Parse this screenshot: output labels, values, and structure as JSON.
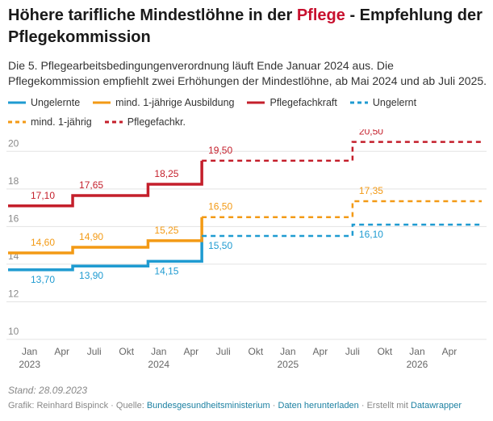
{
  "title": {
    "before": "Höhere tarifliche Mindestlöhne in der",
    "highlight": "Pflege",
    "after": "- Empfehlung der Pflegekommission"
  },
  "subtitle": "Die 5. Pflegearbeitsbedingungenverordnung läuft Ende Januar 2024 aus. Die Pflegekommission empfiehlt zwei Erhöhungen der Mindestlöhne, ab Mai 2024 und ab Juli 2025.",
  "chart_data": {
    "type": "step-line",
    "xlim": [
      "2022-11",
      "2026-07"
    ],
    "xticks": [
      {
        "value": "2023-01",
        "label": "Jan"
      },
      {
        "value": "2023-04",
        "label": "Apr"
      },
      {
        "value": "2023-07",
        "label": "Juli"
      },
      {
        "value": "2023-10",
        "label": "Okt"
      },
      {
        "value": "2024-01",
        "label": "Jan"
      },
      {
        "value": "2024-04",
        "label": "Apr"
      },
      {
        "value": "2024-07",
        "label": "Juli"
      },
      {
        "value": "2024-10",
        "label": "Okt"
      },
      {
        "value": "2025-01",
        "label": "Jan"
      },
      {
        "value": "2025-04",
        "label": "Apr"
      },
      {
        "value": "2025-07",
        "label": "Juli"
      },
      {
        "value": "2025-10",
        "label": "Okt"
      },
      {
        "value": "2026-01",
        "label": "Jan"
      },
      {
        "value": "2026-04",
        "label": "Apr"
      }
    ],
    "xticks_year": [
      {
        "value": "2023-01",
        "label": "2023"
      },
      {
        "value": "2024-01",
        "label": "2024"
      },
      {
        "value": "2025-01",
        "label": "2025"
      },
      {
        "value": "2026-01",
        "label": "2026"
      }
    ],
    "ylim": [
      10,
      21
    ],
    "yticks": [
      10,
      12,
      14,
      16,
      18,
      20
    ],
    "grid": true,
    "series": [
      {
        "name": "Ungelernte",
        "color": "#1f9bd1",
        "dashed": false,
        "label_position": "below",
        "x": [
          "2022-11",
          "2023-05",
          "2023-12",
          "2024-05"
        ],
        "values": [
          13.7,
          13.9,
          14.15,
          15.5
        ],
        "value_labels": [
          "13,70",
          "13,90",
          "14,15",
          "15,50"
        ]
      },
      {
        "name": "mind. 1-jährige Ausbildung",
        "color": "#f39a15",
        "dashed": false,
        "label_position": "above",
        "x": [
          "2022-11",
          "2023-05",
          "2023-12",
          "2024-05"
        ],
        "values": [
          14.6,
          14.9,
          15.25,
          16.5
        ],
        "value_labels": [
          "14,60",
          "14,90",
          "15,25",
          "16,50"
        ]
      },
      {
        "name": "Pflegefachkraft",
        "color": "#c41f2b",
        "dashed": false,
        "label_position": "above",
        "x": [
          "2022-11",
          "2023-05",
          "2023-12",
          "2024-05"
        ],
        "values": [
          17.1,
          17.65,
          18.25,
          19.5
        ],
        "value_labels": [
          "17,10",
          "17,65",
          "18,25",
          "19,50"
        ]
      },
      {
        "name": "Ungelernt",
        "color": "#1f9bd1",
        "dashed": true,
        "label_position": "below",
        "x": [
          "2024-05",
          "2025-07",
          "2026-07"
        ],
        "values": [
          15.5,
          16.1,
          16.1
        ],
        "value_labels": [
          null,
          "16,10",
          null
        ]
      },
      {
        "name": "mind. 1-jährig",
        "color": "#f39a15",
        "dashed": true,
        "label_position": "above",
        "x": [
          "2024-05",
          "2025-07",
          "2026-07"
        ],
        "values": [
          16.5,
          17.35,
          17.35
        ],
        "value_labels": [
          null,
          "17,35",
          null
        ]
      },
      {
        "name": "Pflegefachkr.",
        "color": "#c41f2b",
        "dashed": true,
        "label_position": "above",
        "x": [
          "2024-05",
          "2025-07",
          "2026-07"
        ],
        "values": [
          19.5,
          20.5,
          20.5
        ],
        "value_labels": [
          null,
          "20,50",
          null
        ]
      }
    ]
  },
  "footer": {
    "stand": "Stand: 28.09.2023",
    "credit": "Grafik: Reinhard Bispinck",
    "separator": "·",
    "source_label": "Quelle:",
    "source": "Bundesgesundheitsministerium",
    "download": "Daten herunterladen",
    "made_with": "Erstellt mit",
    "tool": "Datawrapper"
  }
}
